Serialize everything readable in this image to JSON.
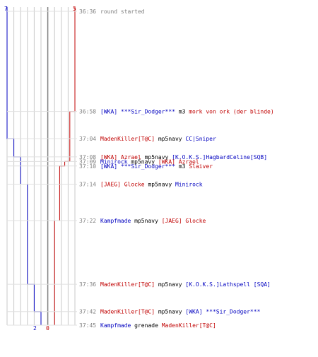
{
  "chart_data": {
    "type": "line",
    "title": "",
    "team_blue": {
      "color": "#0000c0",
      "start": 7,
      "end": 2
    },
    "team_red": {
      "color": "#c00000",
      "start": 5,
      "end": 0
    },
    "grid_columns": 10,
    "time_range": [
      "36:36",
      "37:45"
    ],
    "events": [
      {
        "time": "36:36",
        "blue_step": 0,
        "red_step": 0,
        "parts": [
          {
            "text": "round started",
            "color": "#808080"
          }
        ]
      },
      {
        "time": "36:58",
        "blue_step": 0,
        "red_step": 1,
        "parts": [
          {
            "text": "[WKA] ***Sir_Dodger***",
            "color": "#0000c0"
          },
          {
            "text": " m3 ",
            "color": "#000000"
          },
          {
            "text": "mork von ork (der blinde)",
            "color": "#c00000"
          }
        ]
      },
      {
        "time": "37:04",
        "blue_step": 1,
        "red_step": 1,
        "parts": [
          {
            "text": "MadenKiller[T@C]",
            "color": "#c00000"
          },
          {
            "text": " mp5navy ",
            "color": "#000000"
          },
          {
            "text": "CC|Sniper",
            "color": "#0000c0"
          }
        ]
      },
      {
        "time": "37:08",
        "blue_step": 2,
        "red_step": 1,
        "parts": [
          {
            "text": "[WKA] Azrael",
            "color": "#c00000"
          },
          {
            "text": " mp5navy ",
            "color": "#000000"
          },
          {
            "text": "[K.O.K.S.]HagbardCeline[SQB]",
            "color": "#0000c0"
          }
        ]
      },
      {
        "time": "37:09",
        "blue_step": 2,
        "red_step": 2,
        "parts": [
          {
            "text": "Minirock",
            "color": "#0000c0"
          },
          {
            "text": " mp5navy ",
            "color": "#000000"
          },
          {
            "text": "[WKA] Azrael",
            "color": "#c00000"
          }
        ]
      },
      {
        "time": "37:10",
        "blue_step": 2,
        "red_step": 3,
        "parts": [
          {
            "text": "[WKA] ***Sir_Dodger***",
            "color": "#0000c0"
          },
          {
            "text": " m3 ",
            "color": "#000000"
          },
          {
            "text": "Slaiver",
            "color": "#c00000"
          }
        ]
      },
      {
        "time": "37:14",
        "blue_step": 3,
        "red_step": 3,
        "parts": [
          {
            "text": "[JAEG] Glocke",
            "color": "#c00000"
          },
          {
            "text": " mp5navy ",
            "color": "#000000"
          },
          {
            "text": "Minirock",
            "color": "#0000c0"
          }
        ]
      },
      {
        "time": "37:22",
        "blue_step": 3,
        "red_step": 4,
        "parts": [
          {
            "text": "Kampfmade",
            "color": "#0000c0"
          },
          {
            "text": " mp5navy ",
            "color": "#000000"
          },
          {
            "text": "[JAEG] Glocke",
            "color": "#c00000"
          }
        ]
      },
      {
        "time": "37:36",
        "blue_step": 4,
        "red_step": 4,
        "parts": [
          {
            "text": "MadenKiller[T@C]",
            "color": "#c00000"
          },
          {
            "text": " mp5navy ",
            "color": "#000000"
          },
          {
            "text": "[K.O.K.S.]Lathspell [SQA]",
            "color": "#0000c0"
          }
        ]
      },
      {
        "time": "37:42",
        "blue_step": 5,
        "red_step": 4,
        "parts": [
          {
            "text": "MadenKiller[T@C]",
            "color": "#c00000"
          },
          {
            "text": " mp5navy ",
            "color": "#000000"
          },
          {
            "text": "[WKA] ***Sir_Dodger***",
            "color": "#0000c0"
          }
        ]
      },
      {
        "time": "37:45",
        "blue_step": 5,
        "red_step": 5,
        "parts": [
          {
            "text": "Kampfmade",
            "color": "#0000c0"
          },
          {
            "text": " grenade ",
            "color": "#000000"
          },
          {
            "text": "MadenKiller[T@C]",
            "color": "#c00000"
          }
        ]
      }
    ]
  }
}
